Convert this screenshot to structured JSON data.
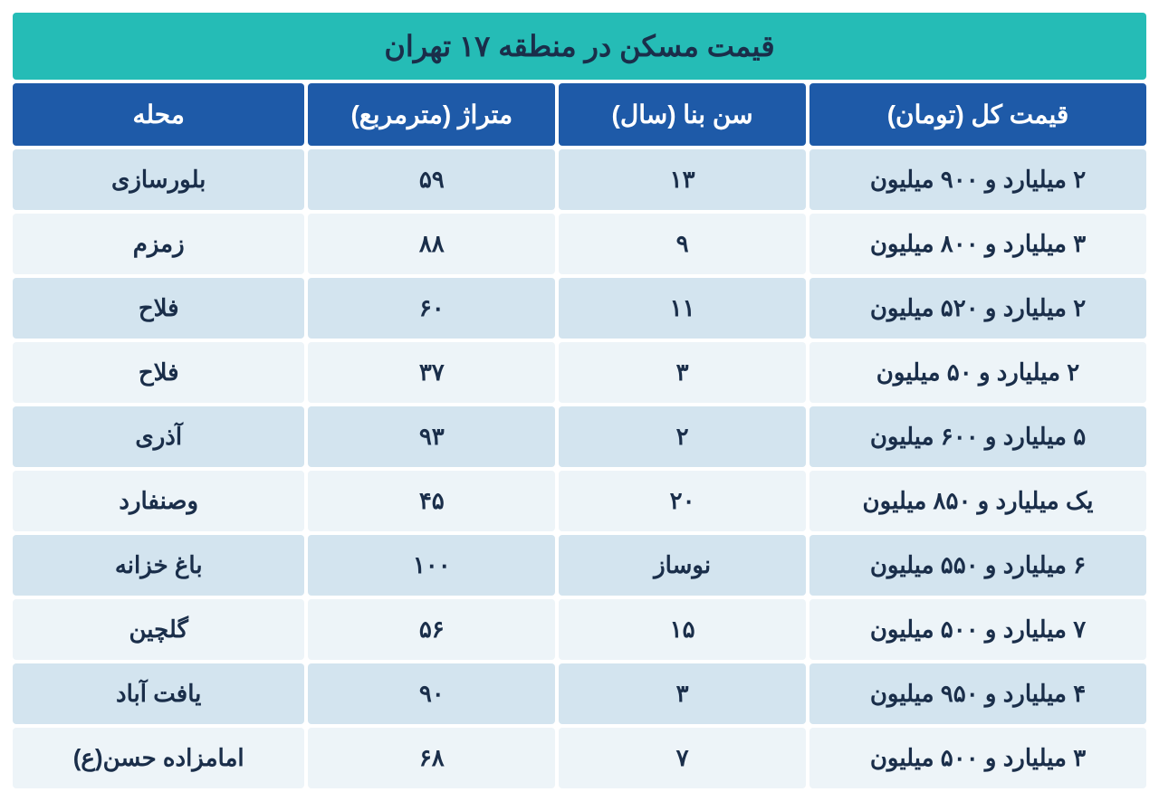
{
  "table": {
    "type": "table",
    "title": "قیمت مسکن در منطقه ۱۷ تهران",
    "columns": [
      "محله",
      "متراژ (مترمربع)",
      "سن بنا (سال)",
      "قیمت کل (تومان)"
    ],
    "rows": [
      [
        "بلورسازی",
        "۵۹",
        "۱۳",
        "۲ میلیارد و ۹۰۰ میلیون"
      ],
      [
        "زمزم",
        "۸۸",
        "۹",
        "۳ میلیارد و ۸۰۰ میلیون"
      ],
      [
        "فلاح",
        "۶۰",
        "۱۱",
        "۲ میلیارد و ۵۲۰ میلیون"
      ],
      [
        "فلاح",
        "۳۷",
        "۳",
        "۲ میلیارد و ۵۰ میلیون"
      ],
      [
        "آذری",
        "۹۳",
        "۲",
        "۵ میلیارد و ۶۰۰ میلیون"
      ],
      [
        "وصنفارد",
        "۴۵",
        "۲۰",
        "یک میلیارد و ۸۵۰ میلیون"
      ],
      [
        "باغ خزانه",
        "۱۰۰",
        "نوساز",
        "۶ میلیارد و ۵۵۰ میلیون"
      ],
      [
        "گلچین",
        "۵۶",
        "۱۵",
        "۷ میلیارد و ۵۰۰ میلیون"
      ],
      [
        "یافت آباد",
        "۹۰",
        "۳",
        "۴ میلیارد و ۹۵۰ میلیون"
      ],
      [
        "امامزاده حسن(ع)",
        "۶۸",
        "۷",
        "۳ میلیارد و ۵۰۰ میلیون"
      ]
    ],
    "styling": {
      "title_bg": "#25bcb6",
      "title_color": "#1a2e4a",
      "title_fontsize": 32,
      "header_bg": "#1e5aa8",
      "header_color": "#ffffff",
      "header_fontsize": 28,
      "row_odd_bg": "#d3e4ef",
      "row_even_bg": "#edf4f8",
      "cell_color": "#1a2e4a",
      "cell_fontsize": 26,
      "border_spacing": 4,
      "border_radius": 4,
      "col_widths_pct": [
        26,
        22,
        22,
        30
      ],
      "direction": "rtl"
    }
  }
}
